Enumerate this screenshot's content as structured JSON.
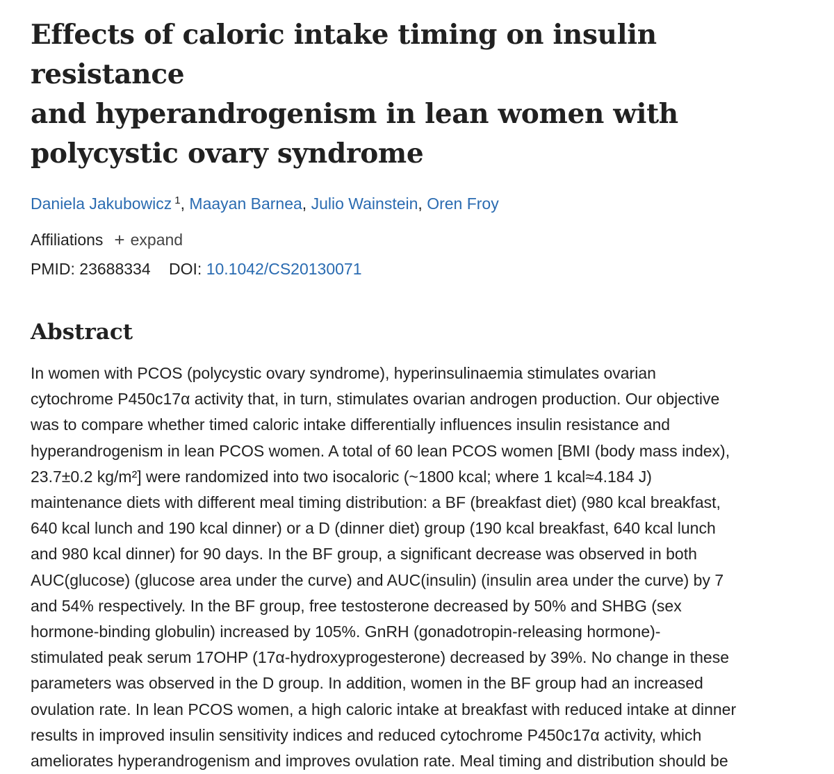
{
  "article": {
    "title_lines": [
      "Effects of caloric intake timing on insulin resistance",
      "and hyperandrogenism in lean women with",
      "polycystic ovary syndrome"
    ],
    "authors": [
      {
        "name": "Daniela Jakubowicz",
        "affiliation_ref": "1"
      },
      {
        "name": "Maayan Barnea"
      },
      {
        "name": "Julio Wainstein"
      },
      {
        "name": "Oren Froy"
      }
    ],
    "author_separator": ", ",
    "affiliations_label": "Affiliations",
    "expand_label": "expand",
    "pmid_label": "PMID:",
    "pmid": "23688334",
    "doi_label": "DOI:",
    "doi": "10.1042/CS20130071"
  },
  "abstract": {
    "heading": "Abstract",
    "lines": [
      "In women with PCOS (polycystic ovary syndrome), hyperinsulinaemia stimulates ovarian",
      "cytochrome P450c17α activity that, in turn, stimulates ovarian androgen production. Our objective",
      "was to compare whether timed caloric intake differentially influences insulin resistance and",
      "hyperandrogenism in lean PCOS women. A total of 60 lean PCOS women [BMI (body mass index),",
      "23.7±0.2 kg/m²] were randomized into two isocaloric (~1800 kcal; where 1 kcal≈4.184 J)",
      "maintenance diets with different meal timing distribution: a BF (breakfast diet) (980 kcal breakfast,",
      "640 kcal lunch and 190 kcal dinner) or a D (dinner diet) group (190 kcal breakfast, 640 kcal lunch",
      "and 980 kcal dinner) for 90 days. In the BF group, a significant decrease was observed in both",
      "AUC(glucose) (glucose area under the curve) and AUC(insulin) (insulin area under the curve) by 7",
      "and 54% respectively. In the BF group, free testosterone decreased by 50% and SHBG (sex",
      "hormone-binding globulin) increased by 105%. GnRH (gonadotropin-releasing hormone)-",
      "stimulated peak serum 17OHP (17α-hydroxyprogesterone) decreased by 39%. No change in these",
      "parameters was observed in the D group. In addition, women in the BF group had an increased",
      "ovulation rate. In lean PCOS women, a high caloric intake at breakfast with reduced intake at dinner",
      "results in improved insulin sensitivity indices and reduced cytochrome P450c17α activity, which",
      "ameliorates hyperandrogenism and improves ovulation rate. Meal timing and distribution should be"
    ]
  }
}
